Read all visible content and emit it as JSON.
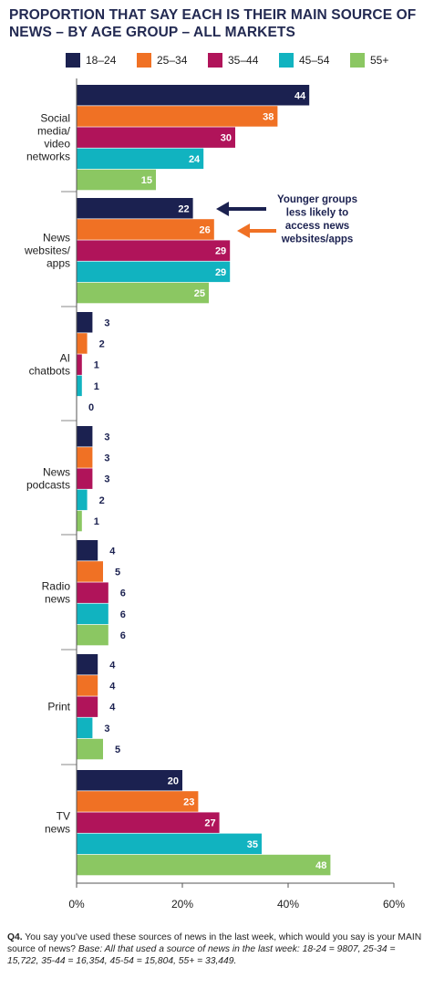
{
  "title": "PROPORTION THAT SAY EACH IS THEIR MAIN SOURCE OF NEWS – BY AGE GROUP – ALL MARKETS",
  "legend": [
    {
      "label": "18–24",
      "color": "#1b2150"
    },
    {
      "label": "25–34",
      "color": "#f07124"
    },
    {
      "label": "35–44",
      "color": "#b0145a"
    },
    {
      "label": "45–54",
      "color": "#11b3c0"
    },
    {
      "label": "55+",
      "color": "#8bc762"
    }
  ],
  "chart_data": {
    "type": "bar",
    "orientation": "horizontal",
    "categories": [
      "Social media/ video networks",
      "News websites/ apps",
      "AI chatbots",
      "News podcasts",
      "Radio news",
      "Print",
      "TV news"
    ],
    "series": [
      {
        "name": "18–24",
        "values": [
          44,
          22,
          3,
          3,
          4,
          4,
          20
        ]
      },
      {
        "name": "25–34",
        "values": [
          38,
          26,
          2,
          3,
          5,
          4,
          23
        ]
      },
      {
        "name": "35–44",
        "values": [
          30,
          29,
          1,
          3,
          6,
          4,
          27
        ]
      },
      {
        "name": "45–54",
        "values": [
          24,
          29,
          1,
          2,
          6,
          3,
          35
        ]
      },
      {
        "name": "55+",
        "values": [
          15,
          25,
          0,
          1,
          6,
          5,
          48
        ]
      }
    ],
    "xlim": [
      0,
      60
    ],
    "xticks": [
      "0%",
      "20%",
      "40%",
      "60%"
    ],
    "annotation": "Younger groups less likely to access news websites/apps",
    "grid": false,
    "legend_position": "top"
  },
  "footnote": {
    "q_label": "Q4.",
    "question": "You say you've used these sources of news in the last week, which would you say is your MAIN source of news?",
    "base": "Base: All that used a source of news in the last week: 18-24 = 9807, 25-34 = 15,722, 35-44 = 16,354, 45-54 = 15,804, 55+ = 33,449."
  }
}
